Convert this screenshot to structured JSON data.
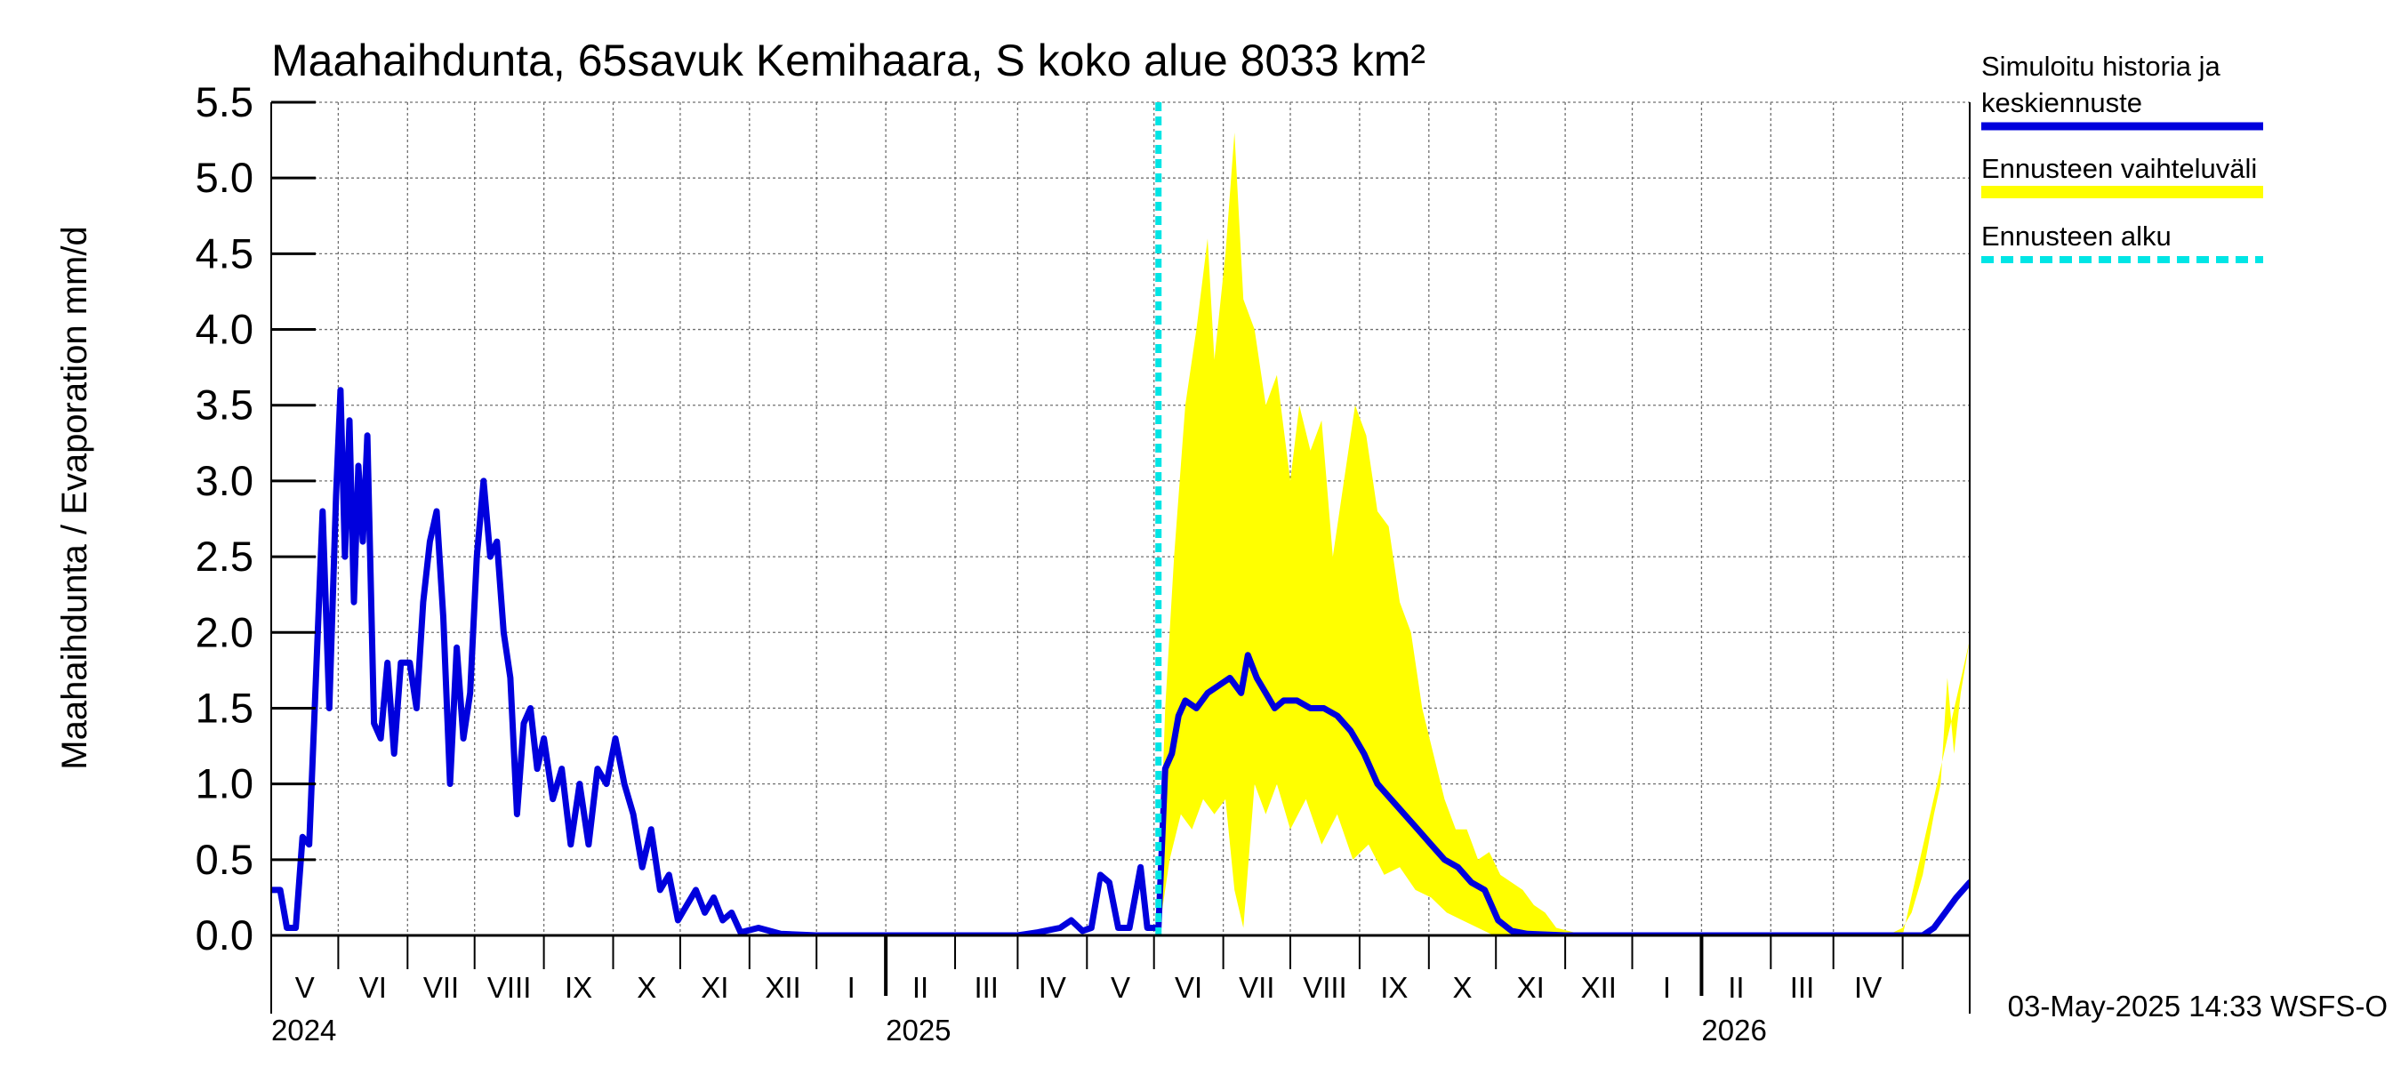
{
  "chart_data": {
    "type": "line",
    "title": "Maahaihdunta, 65savuk Kemihaara, S koko alue 8033 km²",
    "ylabel": "Maahaihdunta / Evaporation   mm/d",
    "ylim": [
      0,
      5.5
    ],
    "yticks": [
      "0.0",
      "0.5",
      "1.0",
      "1.5",
      "2.0",
      "2.5",
      "3.0",
      "3.5",
      "4.0",
      "4.5",
      "5.0",
      "5.5"
    ],
    "xlim": [
      "2024-04-01",
      "2026-05-01"
    ],
    "month_labels": [
      "V",
      "VI",
      "VII",
      "VIII",
      "IX",
      "X",
      "XI",
      "XII",
      "I",
      "II",
      "III",
      "IV",
      "V",
      "VI",
      "VII",
      "VIII",
      "IX",
      "X",
      "XI",
      "XII",
      "I",
      "II",
      "III",
      "IV"
    ],
    "year_labels": [
      "2024",
      "2025",
      "2026"
    ],
    "forecast_start": "2025-05-03",
    "grid": true,
    "legend_position": "right",
    "legend": [
      {
        "label": "Simuloitu historia ja\nkeskiennuste",
        "color": "#0000dd",
        "style": "solid"
      },
      {
        "label": "Ennusteen vaihteluväli",
        "color": "#ffff00",
        "style": "solid"
      },
      {
        "label": "Ennusteen alku",
        "color": "#00e5e5",
        "style": "dashed"
      }
    ],
    "series": [
      {
        "name": "Simuloitu historia ja keskiennuste",
        "color": "#0000dd",
        "points": [
          [
            "2024-04-01",
            0.3
          ],
          [
            "2024-04-05",
            0.3
          ],
          [
            "2024-04-08",
            0.05
          ],
          [
            "2024-04-12",
            0.05
          ],
          [
            "2024-04-15",
            0.65
          ],
          [
            "2024-04-18",
            0.6
          ],
          [
            "2024-04-21",
            1.7
          ],
          [
            "2024-04-24",
            2.8
          ],
          [
            "2024-04-27",
            1.5
          ],
          [
            "2024-04-30",
            2.9
          ],
          [
            "2024-05-02",
            3.6
          ],
          [
            "2024-05-04",
            2.5
          ],
          [
            "2024-05-06",
            3.4
          ],
          [
            "2024-05-08",
            2.2
          ],
          [
            "2024-05-10",
            3.1
          ],
          [
            "2024-05-12",
            2.6
          ],
          [
            "2024-05-14",
            3.3
          ],
          [
            "2024-05-17",
            1.4
          ],
          [
            "2024-05-20",
            1.3
          ],
          [
            "2024-05-23",
            1.8
          ],
          [
            "2024-05-26",
            1.2
          ],
          [
            "2024-05-29",
            1.8
          ],
          [
            "2024-06-02",
            1.8
          ],
          [
            "2024-06-05",
            1.5
          ],
          [
            "2024-06-08",
            2.2
          ],
          [
            "2024-06-11",
            2.6
          ],
          [
            "2024-06-14",
            2.8
          ],
          [
            "2024-06-17",
            2.1
          ],
          [
            "2024-06-20",
            1.0
          ],
          [
            "2024-06-23",
            1.9
          ],
          [
            "2024-06-26",
            1.3
          ],
          [
            "2024-06-29",
            1.6
          ],
          [
            "2024-07-02",
            2.5
          ],
          [
            "2024-07-05",
            3.0
          ],
          [
            "2024-07-08",
            2.5
          ],
          [
            "2024-07-11",
            2.6
          ],
          [
            "2024-07-14",
            2.0
          ],
          [
            "2024-07-17",
            1.7
          ],
          [
            "2024-07-20",
            0.8
          ],
          [
            "2024-07-23",
            1.4
          ],
          [
            "2024-07-26",
            1.5
          ],
          [
            "2024-07-29",
            1.1
          ],
          [
            "2024-08-01",
            1.3
          ],
          [
            "2024-08-05",
            0.9
          ],
          [
            "2024-08-09",
            1.1
          ],
          [
            "2024-08-13",
            0.6
          ],
          [
            "2024-08-17",
            1.0
          ],
          [
            "2024-08-21",
            0.6
          ],
          [
            "2024-08-25",
            1.1
          ],
          [
            "2024-08-29",
            1.0
          ],
          [
            "2024-09-02",
            1.3
          ],
          [
            "2024-09-06",
            1.0
          ],
          [
            "2024-09-10",
            0.8
          ],
          [
            "2024-09-14",
            0.45
          ],
          [
            "2024-09-18",
            0.7
          ],
          [
            "2024-09-22",
            0.3
          ],
          [
            "2024-09-26",
            0.4
          ],
          [
            "2024-09-30",
            0.1
          ],
          [
            "2024-10-04",
            0.2
          ],
          [
            "2024-10-08",
            0.3
          ],
          [
            "2024-10-12",
            0.15
          ],
          [
            "2024-10-16",
            0.25
          ],
          [
            "2024-10-20",
            0.1
          ],
          [
            "2024-10-24",
            0.15
          ],
          [
            "2024-10-28",
            0.02
          ],
          [
            "2024-11-05",
            0.05
          ],
          [
            "2024-11-15",
            0.01
          ],
          [
            "2024-12-01",
            0.0
          ],
          [
            "2025-01-01",
            0.0
          ],
          [
            "2025-02-01",
            0.0
          ],
          [
            "2025-03-01",
            0.0
          ],
          [
            "2025-03-10",
            0.02
          ],
          [
            "2025-03-20",
            0.05
          ],
          [
            "2025-03-25",
            0.1
          ],
          [
            "2025-03-30",
            0.03
          ],
          [
            "2025-04-03",
            0.05
          ],
          [
            "2025-04-07",
            0.4
          ],
          [
            "2025-04-11",
            0.35
          ],
          [
            "2025-04-15",
            0.05
          ],
          [
            "2025-04-20",
            0.05
          ],
          [
            "2025-04-25",
            0.45
          ],
          [
            "2025-04-28",
            0.05
          ],
          [
            "2025-05-03",
            0.05
          ],
          [
            "2025-05-06",
            1.1
          ],
          [
            "2025-05-09",
            1.2
          ],
          [
            "2025-05-12",
            1.45
          ],
          [
            "2025-05-15",
            1.55
          ],
          [
            "2025-05-20",
            1.5
          ],
          [
            "2025-05-25",
            1.6
          ],
          [
            "2025-05-30",
            1.65
          ],
          [
            "2025-06-04",
            1.7
          ],
          [
            "2025-06-09",
            1.6
          ],
          [
            "2025-06-12",
            1.85
          ],
          [
            "2025-06-16",
            1.7
          ],
          [
            "2025-06-20",
            1.6
          ],
          [
            "2025-06-24",
            1.5
          ],
          [
            "2025-06-28",
            1.55
          ],
          [
            "2025-07-04",
            1.55
          ],
          [
            "2025-07-10",
            1.5
          ],
          [
            "2025-07-16",
            1.5
          ],
          [
            "2025-07-22",
            1.45
          ],
          [
            "2025-07-28",
            1.35
          ],
          [
            "2025-08-03",
            1.2
          ],
          [
            "2025-08-09",
            1.0
          ],
          [
            "2025-08-15",
            0.9
          ],
          [
            "2025-08-21",
            0.8
          ],
          [
            "2025-08-27",
            0.7
          ],
          [
            "2025-09-02",
            0.6
          ],
          [
            "2025-09-08",
            0.5
          ],
          [
            "2025-09-14",
            0.45
          ],
          [
            "2025-09-20",
            0.35
          ],
          [
            "2025-09-26",
            0.3
          ],
          [
            "2025-10-02",
            0.1
          ],
          [
            "2025-10-08",
            0.03
          ],
          [
            "2025-10-15",
            0.01
          ],
          [
            "2025-11-01",
            0.0
          ],
          [
            "2026-01-01",
            0.0
          ],
          [
            "2026-04-10",
            0.0
          ],
          [
            "2026-04-15",
            0.05
          ],
          [
            "2026-04-20",
            0.15
          ],
          [
            "2026-04-25",
            0.25
          ],
          [
            "2026-05-01",
            0.35
          ]
        ]
      }
    ],
    "band": {
      "name": "Ennusteen vaihteluväli",
      "color": "#ffff00",
      "lower": [
        [
          "2025-05-03",
          0.0
        ],
        [
          "2025-05-08",
          0.5
        ],
        [
          "2025-05-13",
          0.8
        ],
        [
          "2025-05-18",
          0.7
        ],
        [
          "2025-05-23",
          0.9
        ],
        [
          "2025-05-28",
          0.8
        ],
        [
          "2025-06-02",
          0.9
        ],
        [
          "2025-06-06",
          0.3
        ],
        [
          "2025-06-10",
          0.05
        ],
        [
          "2025-06-15",
          1.0
        ],
        [
          "2025-06-20",
          0.8
        ],
        [
          "2025-06-25",
          1.0
        ],
        [
          "2025-07-01",
          0.7
        ],
        [
          "2025-07-08",
          0.9
        ],
        [
          "2025-07-15",
          0.6
        ],
        [
          "2025-07-22",
          0.8
        ],
        [
          "2025-07-29",
          0.5
        ],
        [
          "2025-08-05",
          0.6
        ],
        [
          "2025-08-12",
          0.4
        ],
        [
          "2025-08-19",
          0.45
        ],
        [
          "2025-08-26",
          0.3
        ],
        [
          "2025-09-02",
          0.25
        ],
        [
          "2025-09-09",
          0.15
        ],
        [
          "2025-09-16",
          0.1
        ],
        [
          "2025-09-23",
          0.05
        ],
        [
          "2025-09-30",
          0.0
        ],
        [
          "2026-04-01",
          0.0
        ]
      ],
      "upper": [
        [
          "2025-05-03",
          0.2
        ],
        [
          "2025-05-06",
          1.5
        ],
        [
          "2025-05-10",
          2.5
        ],
        [
          "2025-05-15",
          3.5
        ],
        [
          "2025-05-20",
          4.0
        ],
        [
          "2025-05-25",
          4.6
        ],
        [
          "2025-05-28",
          3.8
        ],
        [
          "2025-06-02",
          4.5
        ],
        [
          "2025-06-06",
          5.3
        ],
        [
          "2025-06-10",
          4.2
        ],
        [
          "2025-06-15",
          4.0
        ],
        [
          "2025-06-20",
          3.5
        ],
        [
          "2025-06-25",
          3.7
        ],
        [
          "2025-07-01",
          3.0
        ],
        [
          "2025-07-05",
          3.5
        ],
        [
          "2025-07-10",
          3.2
        ],
        [
          "2025-07-15",
          3.4
        ],
        [
          "2025-07-20",
          2.5
        ],
        [
          "2025-07-25",
          3.0
        ],
        [
          "2025-07-30",
          3.5
        ],
        [
          "2025-08-04",
          3.3
        ],
        [
          "2025-08-09",
          2.8
        ],
        [
          "2025-08-14",
          2.7
        ],
        [
          "2025-08-19",
          2.2
        ],
        [
          "2025-08-24",
          2.0
        ],
        [
          "2025-08-29",
          1.5
        ],
        [
          "2025-09-03",
          1.2
        ],
        [
          "2025-09-08",
          0.9
        ],
        [
          "2025-09-13",
          0.7
        ],
        [
          "2025-09-18",
          0.7
        ],
        [
          "2025-09-23",
          0.5
        ],
        [
          "2025-09-28",
          0.55
        ],
        [
          "2025-10-03",
          0.4
        ],
        [
          "2025-10-08",
          0.35
        ],
        [
          "2025-10-13",
          0.3
        ],
        [
          "2025-10-18",
          0.2
        ],
        [
          "2025-10-23",
          0.15
        ],
        [
          "2025-10-28",
          0.05
        ],
        [
          "2025-11-05",
          0.02
        ],
        [
          "2025-11-15",
          0.0
        ],
        [
          "2026-03-25",
          0.0
        ],
        [
          "2026-04-01",
          0.05
        ],
        [
          "2026-04-05",
          0.15
        ],
        [
          "2026-04-10",
          0.4
        ],
        [
          "2026-04-15",
          0.8
        ],
        [
          "2026-04-18",
          1.0
        ],
        [
          "2026-04-21",
          1.7
        ],
        [
          "2026-04-24",
          1.2
        ],
        [
          "2026-04-27",
          1.6
        ],
        [
          "2026-05-01",
          1.95
        ]
      ]
    }
  },
  "footer": {
    "timestamp": "03-May-2025 14:33 WSFS-O"
  }
}
